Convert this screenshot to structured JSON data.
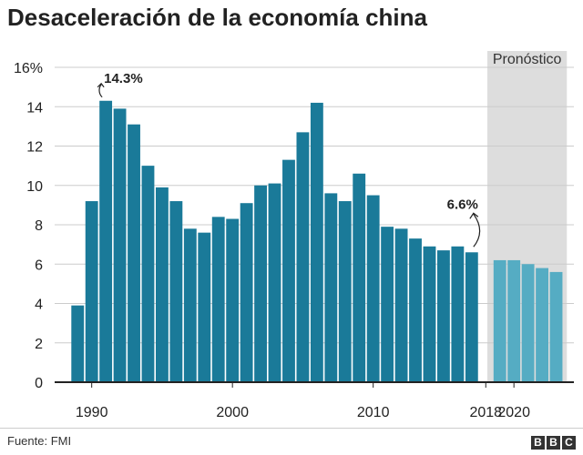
{
  "title": "Desaceleración de la economía china",
  "source": "Fuente: FMI",
  "logo": [
    "B",
    "B",
    "C"
  ],
  "colors": {
    "actual": "#1a7a99",
    "forecast": "#55acc3",
    "forecast_bg": "#dddddd",
    "axis": "#222222"
  },
  "chart_data": {
    "type": "bar",
    "title": "Desaceleración de la economía china",
    "xlabel": "",
    "ylabel": "",
    "ylim": [
      0,
      16
    ],
    "yticks": [
      0,
      2,
      4,
      6,
      8,
      10,
      12,
      14,
      16
    ],
    "ytick_labels": [
      "0",
      "2",
      "4",
      "6",
      "8",
      "10",
      "12",
      "14",
      "16%"
    ],
    "xticks": [
      1990,
      2000,
      2010,
      2018,
      2020
    ],
    "xtick_labels": [
      "1990",
      "2000",
      "2010",
      "2018",
      "2020"
    ],
    "grid": true,
    "forecast_label": "Pronóstico",
    "series": [
      {
        "name": "",
        "x": [
          1989,
          1990,
          1991,
          1992,
          1993,
          1994,
          1995,
          1996,
          1997,
          1998,
          1999,
          2000,
          2001,
          2002,
          2003,
          2004,
          2005,
          2006,
          2007,
          2008,
          2009,
          2010,
          2011,
          2012,
          2013,
          2014,
          2015,
          2016,
          2017,
          2018
        ],
        "values": [
          3.9,
          9.2,
          14.3,
          13.9,
          13.1,
          11.0,
          9.9,
          9.2,
          7.8,
          7.6,
          8.4,
          8.3,
          9.1,
          10.0,
          10.1,
          11.3,
          12.7,
          14.2,
          9.6,
          9.2,
          10.6,
          9.5,
          7.9,
          7.8,
          7.3,
          6.9,
          6.7,
          6.9,
          6.6,
          0
        ]
      },
      {
        "name": "Pronóstico",
        "x": [
          2019,
          2020,
          2021,
          2022,
          2023
        ],
        "values": [
          6.2,
          6.2,
          6.0,
          5.8,
          5.6
        ]
      }
    ],
    "annotations": [
      {
        "text": "14.3%",
        "x": 1991,
        "y": 14.3
      },
      {
        "text": "6.6%",
        "x": 2017,
        "y": 6.6
      }
    ]
  }
}
